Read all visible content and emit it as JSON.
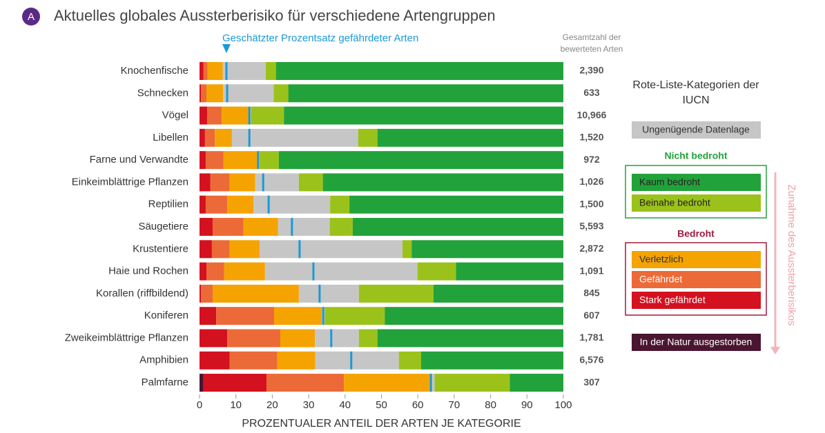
{
  "chart_data": {
    "type": "stacked-bar",
    "badge": "A",
    "title": "Aktuelles globales Aussterberisiko für verschiedene Artengruppen",
    "xlabel": "PROZENTUALER ANTEIL DER ARTEN JE KATEGORIE",
    "categories": [
      "Knochenfische",
      "Schnecken",
      "Vögel",
      "Libellen",
      "Farne und Verwandte",
      "Einkeimblättrige Pflanzen",
      "Reptilien",
      "Säugetiere",
      "Krustentiere",
      "Haie und Rochen",
      "Korallen (riffbildend)",
      "Koniferen",
      "Zweikeimblättrige Pflanzen",
      "Amphibien",
      "Palmfarne"
    ],
    "xlim": [
      0,
      100
    ],
    "xticks": [
      0,
      10,
      20,
      30,
      40,
      50,
      60,
      70,
      80,
      90,
      100
    ],
    "series": [
      {
        "name": "In der Natur ausgestorben",
        "color": "#4a1530",
        "values": [
          0,
          0,
          0,
          0,
          0,
          0,
          0,
          0,
          0,
          0,
          0,
          0,
          0,
          0,
          1.1
        ]
      },
      {
        "name": "Stark gefährdet",
        "color": "#d4111f",
        "values": [
          1.1,
          0.4,
          2.1,
          1.5,
          1.7,
          3,
          1.7,
          3.6,
          3.4,
          1.9,
          0.4,
          4.6,
          7.6,
          8.3,
          17.3
        ]
      },
      {
        "name": "Gefährdet",
        "color": "#ec6a37",
        "values": [
          1.1,
          1.5,
          4,
          2.7,
          4.9,
          5.3,
          5.9,
          8.5,
          4.9,
          4.9,
          3.2,
          15.9,
          14.6,
          13.1,
          21.3
        ]
      },
      {
        "name": "Verletzlich",
        "color": "#f5a300",
        "values": [
          4.2,
          4.6,
          7.4,
          4.7,
          9.3,
          7,
          7.2,
          9.5,
          8.2,
          11.2,
          23.7,
          13.1,
          9.5,
          10.4,
          24.1
        ]
      },
      {
        "name": "Ungenügende Datenlage",
        "color": "#c6c6c6",
        "values": [
          11.8,
          13.9,
          0.6,
          34.7,
          0.6,
          12,
          21.1,
          14.2,
          39.3,
          41.9,
          16.5,
          0.8,
          12.1,
          23,
          0.8
        ]
      },
      {
        "name": "Beinahe bedroht",
        "color": "#9bc21a",
        "values": [
          2.8,
          4,
          9.1,
          5.3,
          5.3,
          6.6,
          5.3,
          6.3,
          2.5,
          10.6,
          20.5,
          16.5,
          5.1,
          6.1,
          20.7
        ]
      },
      {
        "name": "Kaum bedroht",
        "color": "#22a23a",
        "values": [
          79,
          75.6,
          76.8,
          51.1,
          78.2,
          66.1,
          58.8,
          57.9,
          41.7,
          29.5,
          35.7,
          49.1,
          51.1,
          39.1,
          14.7
        ]
      }
    ],
    "markers": {
      "name": "Geschätzter Prozentsatz gefährdeter Arten",
      "color": "#1a9ad6",
      "values": [
        7.4,
        7.6,
        13.7,
        13.7,
        16.1,
        17.5,
        19,
        25.4,
        27.5,
        31.3,
        33,
        34,
        36.2,
        41.7,
        63.6
      ]
    },
    "totals": {
      "header": [
        "Gesamtzahl der",
        "bewerteten Arten"
      ],
      "values": [
        2390,
        633,
        10966,
        1520,
        972,
        1026,
        1500,
        5593,
        2872,
        1091,
        845,
        607,
        1781,
        6576,
        307
      ],
      "value_labels": [
        "2,390",
        "633",
        "10,966",
        "1,520",
        "972",
        "1,026",
        "1,500",
        "5,593",
        "2,872",
        "1,091",
        "845",
        "607",
        "1,781",
        "6,576",
        "307"
      ]
    },
    "legend": {
      "title": [
        "Rote-Liste-Kategorien der",
        "IUCN"
      ],
      "groups": [
        {
          "name": "Nicht bedroht",
          "color": "#22a23a"
        },
        {
          "name": "Bedroht",
          "color": "#9c1a3c"
        }
      ],
      "arrow_label": "Zunahme des Aussterberisikos"
    }
  }
}
